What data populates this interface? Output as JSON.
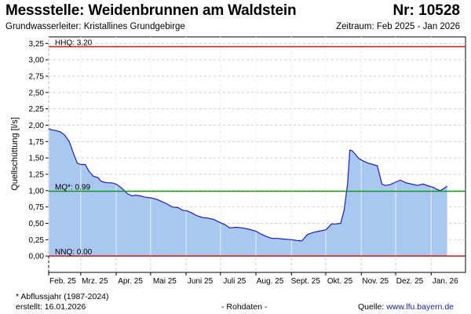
{
  "header": {
    "title": "Messstelle: Weidenbrunnen am Waldstein",
    "number": "Nr: 10528",
    "subtitle": "Grundwasserleiter: Kristallines Grundgebirge",
    "period": "Zeitraum: Feb 2025 - Jan 2026"
  },
  "footer": {
    "note": "* Abflussjahr (1987-2024)",
    "created": "erstellt:  16.01.2026",
    "raw": "- Rohdaten -",
    "source_label": "Quelle:",
    "source_link": "www.lfu.bayern.de"
  },
  "chart_data": {
    "type": "area",
    "ylabel": "Quellschüttung [l/s]",
    "ylim": [
      -0.25,
      3.35
    ],
    "yticks": [
      0.0,
      0.25,
      0.5,
      0.75,
      1.0,
      1.25,
      1.5,
      1.75,
      2.0,
      2.25,
      2.5,
      2.75,
      3.0,
      3.25
    ],
    "ytick_labels": [
      "0,00",
      "0,25",
      "0,50",
      "0,75",
      "1,00",
      "1,25",
      "1,50",
      "1,75",
      "2,00",
      "2,25",
      "2,50",
      "2,75",
      "3,00",
      "3,25"
    ],
    "xlim": [
      "2025-02-01",
      "2026-01-31"
    ],
    "xticks": [
      "2025-02-01",
      "2025-03-01",
      "2025-04-01",
      "2025-05-01",
      "2025-06-01",
      "2025-07-01",
      "2025-08-01",
      "2025-09-01",
      "2025-10-01",
      "2025-11-01",
      "2025-12-01",
      "2026-01-01"
    ],
    "xtick_labels": [
      "Feb. 25",
      "Mrz. 25",
      "Apr. 25",
      "Mai 25",
      "Juni 25",
      "Juli 25",
      "Aug. 25",
      "Sept. 25",
      "Okt. 25",
      "Nov. 25",
      "Dez. 25",
      "Jan. 26"
    ],
    "grid": true,
    "fill_color": "#a9c8ef",
    "line_color": "#1c1ccc",
    "reference_lines": [
      {
        "label": "HHQ: 3.20",
        "value": 3.2,
        "color": "#dd1111"
      },
      {
        "label": "MQ*: 0.99",
        "value": 0.99,
        "color": "#119911"
      },
      {
        "label": "NNQ: 0.00",
        "value": 0.0,
        "color": "#dd1111"
      }
    ],
    "series": [
      {
        "x": [
          "2025-02-01",
          "2025-02-03",
          "2025-02-07",
          "2025-02-11",
          "2025-02-15",
          "2025-02-19",
          "2025-02-22",
          "2025-02-26",
          "2025-03-01",
          "2025-03-05",
          "2025-03-08",
          "2025-03-12",
          "2025-03-16",
          "2025-03-19",
          "2025-03-24",
          "2025-03-28",
          "2025-04-01",
          "2025-04-05",
          "2025-04-08",
          "2025-04-11",
          "2025-04-15",
          "2025-04-18",
          "2025-04-22",
          "2025-04-26",
          "2025-05-01",
          "2025-05-06",
          "2025-05-10",
          "2025-05-15",
          "2025-05-20",
          "2025-05-25",
          "2025-05-29",
          "2025-06-02",
          "2025-06-06",
          "2025-06-10",
          "2025-06-15",
          "2025-06-20",
          "2025-06-25",
          "2025-07-01",
          "2025-07-05",
          "2025-07-09",
          "2025-07-15",
          "2025-07-20",
          "2025-07-26",
          "2025-08-01",
          "2025-08-05",
          "2025-08-10",
          "2025-08-15",
          "2025-08-20",
          "2025-08-25",
          "2025-09-01",
          "2025-09-05",
          "2025-09-10",
          "2025-09-15",
          "2025-09-20",
          "2025-09-25",
          "2025-10-01",
          "2025-10-06",
          "2025-10-10",
          "2025-10-14",
          "2025-10-17",
          "2025-10-20",
          "2025-10-22",
          "2025-10-24",
          "2025-10-27",
          "2025-10-30",
          "2025-11-03",
          "2025-11-07",
          "2025-11-11",
          "2025-11-15",
          "2025-11-19",
          "2025-11-22",
          "2025-11-26",
          "2025-12-01",
          "2025-12-05",
          "2025-12-10",
          "2025-12-15",
          "2025-12-20",
          "2025-12-25",
          "2025-12-30",
          "2026-01-03",
          "2026-01-06",
          "2026-01-09",
          "2026-01-12",
          "2026-01-15"
        ],
        "y": [
          1.95,
          1.93,
          1.92,
          1.9,
          1.85,
          1.75,
          1.6,
          1.42,
          1.4,
          1.4,
          1.3,
          1.22,
          1.2,
          1.14,
          1.12,
          1.12,
          1.1,
          1.05,
          1.0,
          0.95,
          0.92,
          0.93,
          0.92,
          0.9,
          0.89,
          0.87,
          0.84,
          0.8,
          0.75,
          0.74,
          0.7,
          0.69,
          0.66,
          0.62,
          0.59,
          0.58,
          0.56,
          0.51,
          0.48,
          0.43,
          0.44,
          0.43,
          0.41,
          0.38,
          0.34,
          0.3,
          0.27,
          0.27,
          0.26,
          0.25,
          0.24,
          0.23,
          0.33,
          0.36,
          0.38,
          0.4,
          0.49,
          0.49,
          0.5,
          0.7,
          1.1,
          1.62,
          1.61,
          1.55,
          1.49,
          1.45,
          1.42,
          1.4,
          1.38,
          1.1,
          1.08,
          1.09,
          1.13,
          1.16,
          1.12,
          1.1,
          1.08,
          1.1,
          1.07,
          1.05,
          1.02,
          1.0,
          1.03,
          1.07
        ]
      }
    ]
  }
}
